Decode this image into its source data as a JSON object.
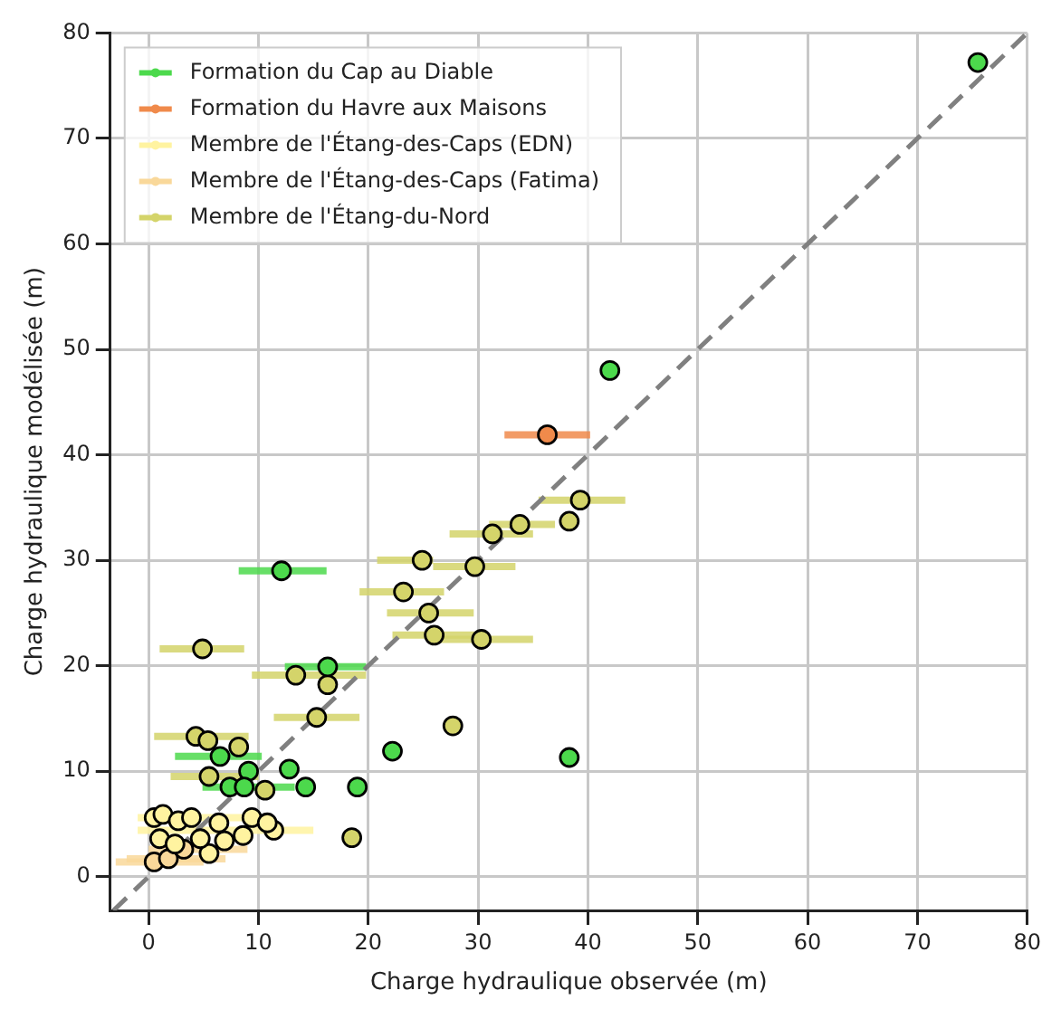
{
  "chart_data": {
    "type": "scatter",
    "xlabel": "Charge hydraulique observée (m)",
    "ylabel": "Charge hydraulique modélisée (m)",
    "xlim": [
      -3.5,
      80
    ],
    "ylim": [
      -3.2,
      80
    ],
    "xticks": [
      0,
      10,
      20,
      30,
      40,
      50,
      60,
      70,
      80
    ],
    "yticks": [
      0,
      10,
      20,
      30,
      40,
      50,
      60,
      70,
      80
    ],
    "grid": true,
    "legend": "top left",
    "marker": "circle",
    "series": [
      {
        "name": "Formation du Cap au Diable",
        "color": "#4cd94c",
        "x": [
          75.5,
          42,
          12.1,
          16.3,
          22.2,
          38.3,
          19,
          12.8,
          14.3,
          6.5,
          9.1,
          7.4,
          8.7
        ],
        "values": [
          77.2,
          48,
          29,
          19.9,
          11.9,
          11.3,
          8.5,
          10.2,
          8.5,
          11.4,
          10,
          8.5,
          8.5
        ],
        "xerrors": [
          null,
          null,
          [
            8.2,
            16.2
          ],
          [
            12.4,
            19.8
          ],
          null,
          null,
          null,
          null,
          null,
          [
            2.4,
            10.3
          ],
          null,
          [
            4.9,
            13.3
          ],
          null
        ]
      },
      {
        "name": "Formation du Havre aux Maisons",
        "color": "#f08a4b",
        "x": [
          36.3
        ],
        "values": [
          41.9
        ],
        "xerrors": [
          [
            32.4,
            40.2
          ]
        ]
      },
      {
        "name": "Membre de l'Étang-des-Caps (EDN)",
        "color": "#fff3a0",
        "x": [
          0.5,
          1.3,
          2.7,
          3.9,
          6.4,
          9.4,
          11.4,
          10.8,
          1,
          2.4,
          5.5,
          6.9,
          8.6,
          4.7
        ],
        "values": [
          5.6,
          5.9,
          5.3,
          5.6,
          5.1,
          5.6,
          4.4,
          5.1,
          3.6,
          3.1,
          2.2,
          3.4,
          3.9,
          3.6
        ],
        "xerrors": [
          [
            -1,
            9
          ],
          null,
          null,
          null,
          null,
          null,
          [
            -1,
            15
          ],
          null,
          null,
          null,
          null,
          null,
          null,
          null
        ]
      },
      {
        "name": "Membre de l'Étang-des-Caps (Fatima)",
        "color": "#f9d89a",
        "x": [
          0.5,
          1.8,
          3.2
        ],
        "values": [
          1.4,
          1.7,
          2.6
        ],
        "xerrors": [
          [
            -3,
            5
          ],
          [
            -2,
            7
          ],
          [
            0,
            9
          ]
        ]
      },
      {
        "name": "Membre de l'Étang-du-Nord",
        "color": "#d4d46a",
        "x": [
          39.3,
          38.3,
          33.8,
          31.3,
          24.9,
          29.7,
          23.2,
          25.5,
          26,
          30.3,
          27.7,
          4.9,
          13.4,
          16.3,
          15.3,
          4.3,
          5.4,
          8.2,
          5.5,
          10.6,
          18.5
        ],
        "values": [
          35.7,
          33.7,
          33.4,
          32.5,
          30,
          29.4,
          27,
          25,
          22.9,
          22.5,
          14.3,
          21.6,
          19.1,
          18.2,
          15.1,
          13.3,
          12.9,
          12.3,
          9.5,
          8.2,
          3.7
        ],
        "xerrors": [
          [
            35.5,
            43.4
          ],
          null,
          [
            31,
            37
          ],
          [
            27.4,
            35
          ],
          [
            20.8,
            25.9
          ],
          [
            25.9,
            33.4
          ],
          [
            19.2,
            26.9
          ],
          [
            21.7,
            29.6
          ],
          [
            22.2,
            30
          ],
          [
            26,
            35
          ],
          null,
          [
            1,
            8.7
          ],
          [
            9.4,
            19.8
          ],
          null,
          [
            11.4,
            19.2
          ],
          [
            0.5,
            9.1
          ],
          null,
          null,
          [
            2,
            10
          ],
          null,
          null
        ]
      },
      {
        "type": "line",
        "color": "#808080",
        "marker": "none",
        "line_style": "dashed",
        "x": [
          -3.2,
          80
        ],
        "values": [
          -3.2,
          80
        ]
      }
    ]
  }
}
